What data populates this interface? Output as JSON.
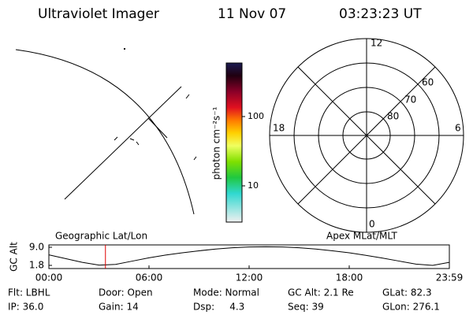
{
  "header": {
    "instrument": "Ultraviolet Imager",
    "date": "11 Nov 07",
    "time": "03:23:23 UT"
  },
  "colorbar": {
    "label": "photon cm⁻²s⁻¹",
    "ticks": [
      "100",
      "10"
    ]
  },
  "polar": {
    "mlt_labels": [
      "12",
      "6",
      "0",
      "18"
    ],
    "lat_labels": [
      "60",
      "70",
      "80"
    ]
  },
  "altitude_plot": {
    "ylabel": "GC Alt",
    "yticks": [
      "9.0",
      "1.8"
    ],
    "ylim": [
      1.8,
      9.0
    ],
    "left_label": "Geographic Lat/Lon",
    "right_label": "Apex MLat/MLT",
    "xticks": [
      "00:00",
      "06:00",
      "12:00",
      "18:00",
      "23:59"
    ],
    "hours": [
      0,
      1,
      2,
      3,
      4,
      5,
      6,
      7,
      8,
      9,
      10,
      11,
      12,
      13,
      14,
      15,
      16,
      17,
      18,
      19,
      20,
      21,
      22,
      23,
      24
    ],
    "altitude": [
      6.0,
      4.5,
      3.0,
      1.9,
      2.2,
      3.5,
      4.8,
      5.9,
      6.8,
      7.6,
      8.3,
      8.8,
      9.1,
      9.2,
      9.1,
      8.8,
      8.3,
      7.6,
      6.8,
      5.8,
      4.7,
      3.5,
      2.3,
      1.8,
      3.0
    ],
    "marker_hour": 3.39
  },
  "status": {
    "rows": [
      [
        "Flt: LBHL",
        "Door: Open",
        "Mode: Normal",
        "GC Alt: 2.1 Re",
        "GLat: 82.3"
      ],
      [
        "IP: 36.0",
        "Gain: 14",
        "Dsp:     4.3",
        "Seq: 39",
        "GLon: 276.1"
      ]
    ]
  }
}
